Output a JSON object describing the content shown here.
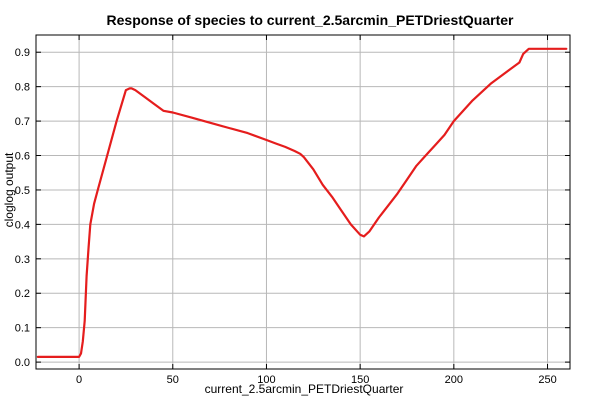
{
  "chart_data": {
    "type": "line",
    "title": "Response of species to current_2.5arcmin_PETDriestQuarter",
    "xlabel": "current_2.5arcmin_PETDriestQuarter",
    "ylabel": "cloglog output",
    "xlim": [
      -23,
      262
    ],
    "ylim": [
      -0.02,
      0.95
    ],
    "xticks": [
      0,
      50,
      100,
      150,
      200,
      250
    ],
    "yticks": [
      0.0,
      0.1,
      0.2,
      0.3,
      0.4,
      0.5,
      0.6,
      0.7,
      0.8,
      0.9
    ],
    "grid": true,
    "series": [
      {
        "color": "#e51d1d",
        "x": [
          -22,
          -20,
          -10,
          0,
          1,
          2,
          3,
          4,
          5,
          6,
          8,
          10,
          15,
          20,
          25,
          27,
          28,
          30,
          35,
          40,
          45,
          50,
          60,
          70,
          80,
          90,
          100,
          105,
          110,
          115,
          118,
          120,
          125,
          130,
          135,
          140,
          145,
          150,
          152,
          155,
          160,
          165,
          170,
          175,
          180,
          185,
          190,
          195,
          200,
          210,
          220,
          230,
          235,
          237,
          240,
          245,
          250,
          255,
          260
        ],
        "y": [
          0.015,
          0.015,
          0.015,
          0.015,
          0.025,
          0.06,
          0.12,
          0.25,
          0.33,
          0.4,
          0.46,
          0.5,
          0.6,
          0.7,
          0.79,
          0.795,
          0.795,
          0.79,
          0.77,
          0.75,
          0.73,
          0.725,
          0.71,
          0.695,
          0.68,
          0.665,
          0.645,
          0.635,
          0.625,
          0.613,
          0.605,
          0.595,
          0.56,
          0.515,
          0.48,
          0.44,
          0.4,
          0.37,
          0.365,
          0.38,
          0.42,
          0.455,
          0.49,
          0.53,
          0.57,
          0.6,
          0.63,
          0.66,
          0.7,
          0.76,
          0.81,
          0.85,
          0.87,
          0.895,
          0.91,
          0.91,
          0.91,
          0.91,
          0.91
        ]
      }
    ]
  }
}
